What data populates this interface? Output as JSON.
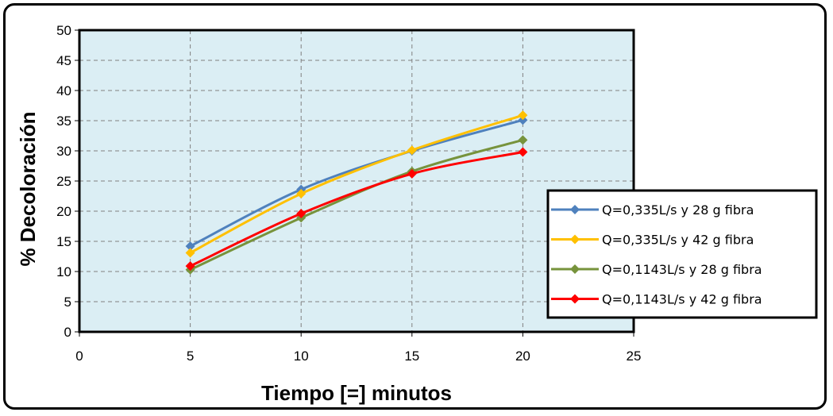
{
  "chart_data": {
    "type": "line",
    "title": "",
    "xlabel": "Tiempo [=] minutos",
    "ylabel": "% Decoloración",
    "xlim": [
      0,
      25
    ],
    "ylim": [
      0,
      50
    ],
    "x_ticks": [
      0,
      5,
      10,
      15,
      20,
      25
    ],
    "y_ticks": [
      0,
      5,
      10,
      15,
      20,
      25,
      30,
      35,
      40,
      45,
      50
    ],
    "grid": true,
    "plot_background": "#dbeef4",
    "legend_position": "right",
    "x": [
      5,
      10,
      15,
      20
    ],
    "series": [
      {
        "name": "Q=0,335L/s y 28 g fibra",
        "color": "#4f81bd",
        "values": [
          14.2,
          23.6,
          30.0,
          35.1
        ]
      },
      {
        "name": "Q=0,335L/s y 42 g fibra",
        "color": "#ffc000",
        "values": [
          13.1,
          22.9,
          30.1,
          35.9
        ]
      },
      {
        "name": "Q=0,1143L/s y 28 g fibra",
        "color": "#77933c",
        "values": [
          10.3,
          18.9,
          26.6,
          31.8
        ]
      },
      {
        "name": "Q=0,1143L/s y 42 g fibra",
        "color": "#ff0000",
        "values": [
          10.9,
          19.6,
          26.2,
          29.8
        ]
      }
    ]
  }
}
